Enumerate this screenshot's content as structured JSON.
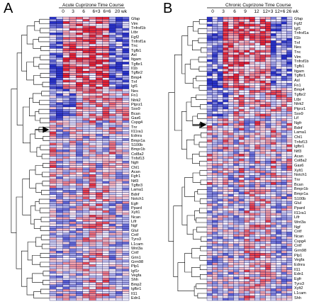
{
  "panels": [
    {
      "letter": "A",
      "title": "Acute Cuprizone Time Course",
      "timepoints": [
        "0",
        "3",
        "6",
        "6+3",
        "6+6",
        "20 wk"
      ],
      "genes": [
        "Gfap",
        "Vim",
        "Tnfrsf1b",
        "Ltbr",
        "Fgf2",
        "Tnfrsf1a",
        "Tnc",
        "Tgfb1",
        "Axl",
        "Itgam",
        "Tgfbr1",
        "Il1b",
        "Tgfbr2",
        "Bmp4",
        "Tnf",
        "Igf1",
        "Nes",
        "Fn1",
        "Ntrk2",
        "Ptprz1",
        "Sox9",
        "Bcan",
        "Gas6",
        "Cspg4",
        "Tnr",
        "Il11ra1",
        "Ednra",
        "Bmpr1a",
        "S100b",
        "Bmpr1b",
        "Col8a2",
        "Tnfsf13",
        "Ngfr",
        "Chl1",
        "Acan",
        "Fgfr1",
        "Ntf3",
        "Tgfbr3",
        "Lama1",
        "Bdnf",
        "Notch1",
        "Egfr",
        "Ppard",
        "Xylt1",
        "Ncan",
        "Lifr",
        "Ngf",
        "Glul",
        "Cntf",
        "Tyro3",
        "L1cam",
        "Wnt3a",
        "Cntf",
        "Grin1",
        "Grm98",
        "Plp1",
        "Igf1r",
        "Vegfa",
        "Shh",
        "Bmp2",
        "Igfbr1",
        "Il11",
        "Edn1"
      ]
    },
    {
      "letter": "B",
      "title": "Chronic Cuprizone Time Course",
      "timepoints": [
        "0",
        "3",
        "6",
        "9",
        "12",
        "12+3",
        "12+6",
        "26 wk"
      ],
      "genes": [
        "Gfap",
        "Fgf2",
        "Igf1",
        "Tnfrsf1a",
        "Il1b",
        "Tnf",
        "Nes",
        "Tnc",
        "Vim",
        "Tnfrsf1b",
        "Tgfb1",
        "Itgam",
        "Tgfbr1",
        "Axl",
        "Fn1",
        "Bmp4",
        "Tgfbr2",
        "Ltbr",
        "Ntrk2",
        "Ptprz1",
        "Sox9",
        "Lif",
        "Ngfr",
        "Bdnf",
        "Lama1",
        "Chl1",
        "Tnfsf13",
        "Igfbr1",
        "Ntf3",
        "Acan",
        "Col8a2",
        "Gas6",
        "Xylt1",
        "Notch1",
        "Tnr",
        "Bcan",
        "Bmpr1b",
        "Bmpr1a",
        "S100b",
        "Glul",
        "Ppard",
        "Il11ra1",
        "Lifr",
        "Wnt3a",
        "Ngf",
        "Cntf",
        "Ncan",
        "Cspg4",
        "Cntf",
        "Grm98",
        "Plp1",
        "Vegfa",
        "Ednra",
        "Il11",
        "Edn1",
        "Egfr",
        "Tyro3",
        "Xylt2",
        "L1cam",
        "Shh"
      ]
    }
  ],
  "colors": {
    "high": "#e8232f",
    "low": "#2932c8",
    "mid": "#ffffff",
    "grid": "#101060",
    "line": "#000000"
  }
}
